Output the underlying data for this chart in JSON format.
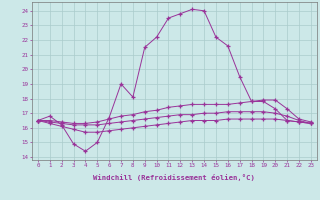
{
  "xlabel": "Windchill (Refroidissement éolien,°C)",
  "bg_color": "#cce8e8",
  "grid_color": "#aacccc",
  "line_color": "#993399",
  "x_ticks": [
    0,
    1,
    2,
    3,
    4,
    5,
    6,
    7,
    8,
    9,
    10,
    11,
    12,
    13,
    14,
    15,
    16,
    17,
    18,
    19,
    20,
    21,
    22,
    23
  ],
  "y_ticks": [
    14,
    15,
    16,
    17,
    18,
    19,
    20,
    21,
    22,
    23,
    24
  ],
  "ylim": [
    13.8,
    24.6
  ],
  "xlim": [
    -0.5,
    23.5
  ],
  "series": [
    {
      "y": [
        16.5,
        16.8,
        16.2,
        14.9,
        14.4,
        15.0,
        16.7,
        19.0,
        18.1,
        21.5,
        22.2,
        23.5,
        23.8,
        24.1,
        24.0,
        22.2,
        21.6,
        19.5,
        17.8,
        17.8,
        17.3,
        16.5,
        16.4,
        16.3
      ]
    },
    {
      "y": [
        16.5,
        16.5,
        16.4,
        16.3,
        16.3,
        16.4,
        16.6,
        16.8,
        16.9,
        17.1,
        17.2,
        17.4,
        17.5,
        17.6,
        17.6,
        17.6,
        17.6,
        17.7,
        17.8,
        17.9,
        17.9,
        17.3,
        16.6,
        16.4
      ]
    },
    {
      "y": [
        16.5,
        16.4,
        16.3,
        16.2,
        16.2,
        16.2,
        16.3,
        16.4,
        16.5,
        16.6,
        16.7,
        16.8,
        16.9,
        16.9,
        17.0,
        17.0,
        17.1,
        17.1,
        17.1,
        17.1,
        17.0,
        16.8,
        16.5,
        16.3
      ]
    },
    {
      "y": [
        16.5,
        16.3,
        16.1,
        15.9,
        15.7,
        15.7,
        15.8,
        15.9,
        16.0,
        16.1,
        16.2,
        16.3,
        16.4,
        16.5,
        16.5,
        16.5,
        16.6,
        16.6,
        16.6,
        16.6,
        16.6,
        16.5,
        16.4,
        16.3
      ]
    }
  ]
}
